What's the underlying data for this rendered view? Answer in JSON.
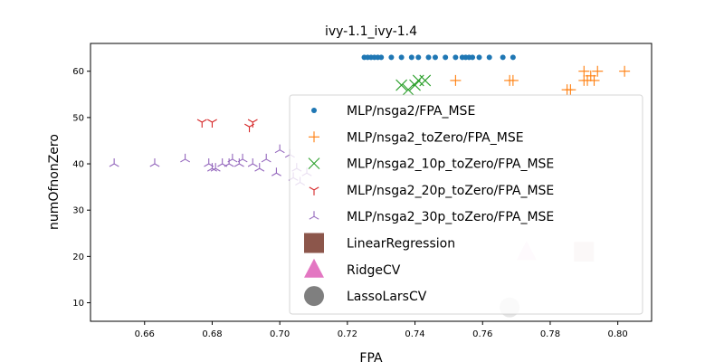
{
  "chart_data": {
    "type": "scatter",
    "title": "ivy-1.1_ivy-1.4",
    "xlabel": "FPA",
    "ylabel": "numOfnonZero",
    "xlim": [
      0.644,
      0.81
    ],
    "ylim": [
      6,
      66
    ],
    "xticks": [
      "0.66",
      "0.68",
      "0.70",
      "0.72",
      "0.74",
      "0.76",
      "0.78",
      "0.80"
    ],
    "yticks": [
      "10",
      "20",
      "30",
      "40",
      "50",
      "60"
    ],
    "grid": false,
    "legend_position": "lower-right",
    "series": [
      {
        "name": "MLP/nsga2/FPA_MSE",
        "marker": "dot",
        "color": "#1f77b4",
        "x": [
          0.725,
          0.726,
          0.727,
          0.728,
          0.729,
          0.73,
          0.733,
          0.736,
          0.739,
          0.741,
          0.744,
          0.746,
          0.749,
          0.752,
          0.754,
          0.755,
          0.756,
          0.757,
          0.759,
          0.762,
          0.766,
          0.769
        ],
        "y": [
          63,
          63,
          63,
          63,
          63,
          63,
          63,
          63,
          63,
          63,
          63,
          63,
          63,
          63,
          63,
          63,
          63,
          63,
          63,
          63,
          63,
          63
        ]
      },
      {
        "name": "MLP/nsga2_toZero/FPA_MSE",
        "marker": "plus",
        "color": "#ff7f0e",
        "x": [
          0.752,
          0.768,
          0.769,
          0.785,
          0.786,
          0.79,
          0.79,
          0.791,
          0.792,
          0.793,
          0.794,
          0.802
        ],
        "y": [
          58,
          58,
          58,
          56,
          56,
          60,
          58,
          58,
          59,
          58,
          60,
          60
        ]
      },
      {
        "name": "MLP/nsga2_10p_toZero/FPA_MSE",
        "marker": "x",
        "color": "#2ca02c",
        "x": [
          0.736,
          0.738,
          0.74,
          0.741,
          0.743
        ],
        "y": [
          57,
          56,
          57,
          58,
          58
        ]
      },
      {
        "name": "MLP/nsga2_20p_toZero/FPA_MSE",
        "marker": "tri_down",
        "color": "#d62728",
        "x": [
          0.677,
          0.68,
          0.691,
          0.692
        ],
        "y": [
          49,
          49,
          48,
          49
        ]
      },
      {
        "name": "MLP/nsga2_30p_toZero/FPA_MSE",
        "marker": "tri_up",
        "color": "#9467bd",
        "x": [
          0.651,
          0.663,
          0.672,
          0.679,
          0.68,
          0.681,
          0.683,
          0.685,
          0.686,
          0.688,
          0.689,
          0.692,
          0.694,
          0.696,
          0.699,
          0.7,
          0.703,
          0.704,
          0.705,
          0.706,
          0.708
        ],
        "y": [
          40,
          40,
          41,
          40,
          39,
          39,
          40,
          40,
          41,
          40,
          41,
          40,
          39,
          41,
          38,
          43,
          42,
          37,
          39,
          36,
          38
        ]
      },
      {
        "name": "LinearRegression",
        "marker": "square",
        "color": "#8c564b",
        "x": [
          0.79
        ],
        "y": [
          21
        ]
      },
      {
        "name": "RidgeCV",
        "marker": "triangle",
        "color": "#e377c2",
        "x": [
          0.773
        ],
        "y": [
          21
        ]
      },
      {
        "name": "LassoLarsCV",
        "marker": "circle",
        "color": "#7f7f7f",
        "x": [
          0.768
        ],
        "y": [
          9
        ]
      }
    ]
  }
}
